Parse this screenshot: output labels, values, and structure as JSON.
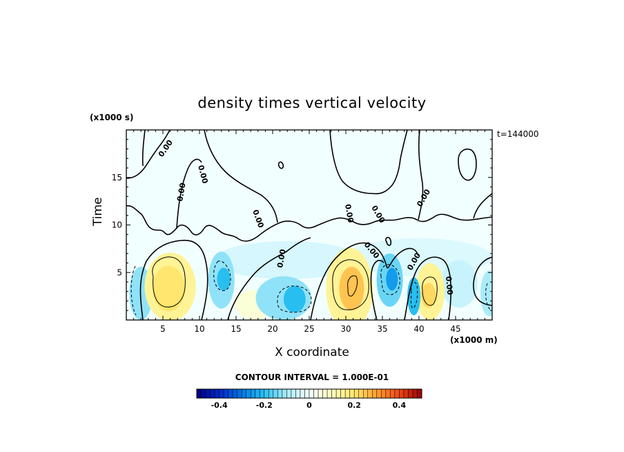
{
  "chart_data": {
    "type": "heatmap",
    "title": "density times vertical velocity",
    "xlabel": "X coordinate",
    "xunit": "(x1000 m)",
    "ylabel": "Time",
    "yunit": "(x1000 s)",
    "time_label": "t=144000",
    "xlim": [
      0,
      50
    ],
    "ylim": [
      0,
      20
    ],
    "xticks": [
      5,
      10,
      15,
      20,
      25,
      30,
      35,
      40,
      45
    ],
    "yticks": [
      5,
      10,
      15
    ],
    "contour_interval": "CONTOUR INTERVAL = 1.000E-01",
    "contour_labels": [
      "0.00"
    ],
    "colorbar": {
      "vmin": -0.5,
      "vmax": 0.5,
      "ticks": [
        "-0.4",
        "-0.2",
        "0",
        "0.2",
        "0.4"
      ],
      "tick_values": [
        -0.4,
        -0.2,
        0,
        0.2,
        0.4
      ]
    },
    "regions": [
      {
        "x": 6,
        "y": 3.5,
        "rx": 3.5,
        "ry": 3.6,
        "value": 0.15
      },
      {
        "x": 5.8,
        "y": 3.3,
        "rx": 2.2,
        "ry": 2.4,
        "value": 0.2
      },
      {
        "x": 2,
        "y": 2.8,
        "rx": 1.6,
        "ry": 2.8,
        "value": -0.12
      },
      {
        "x": 13,
        "y": 4.2,
        "rx": 1.8,
        "ry": 3.0,
        "value": -0.12
      },
      {
        "x": 13.3,
        "y": 4.3,
        "rx": 0.9,
        "ry": 1.2,
        "value": -0.2
      },
      {
        "x": 21.5,
        "y": 2.3,
        "rx": 3.8,
        "ry": 2.3,
        "value": -0.12
      },
      {
        "x": 23,
        "y": 2.2,
        "rx": 1.5,
        "ry": 1.4,
        "value": -0.2
      },
      {
        "x": 17.5,
        "y": 1.6,
        "rx": 2.6,
        "ry": 1.6,
        "value": 0.06
      },
      {
        "x": 30.5,
        "y": 3.3,
        "rx": 3.2,
        "ry": 4.3,
        "value": 0.15
      },
      {
        "x": 30.8,
        "y": 3.3,
        "rx": 1.7,
        "ry": 2.3,
        "value": 0.25
      },
      {
        "x": 36,
        "y": 4.2,
        "rx": 1.8,
        "ry": 2.8,
        "value": -0.15
      },
      {
        "x": 36.3,
        "y": 4.3,
        "rx": 0.8,
        "ry": 1.2,
        "value": -0.25
      },
      {
        "x": 39.3,
        "y": 2.5,
        "rx": 0.9,
        "ry": 2.0,
        "value": -0.2
      },
      {
        "x": 41.5,
        "y": 3.0,
        "rx": 2.0,
        "ry": 3.0,
        "value": 0.15
      },
      {
        "x": 41.3,
        "y": 2.6,
        "rx": 1.0,
        "ry": 1.3,
        "value": 0.22
      },
      {
        "x": 45.5,
        "y": 3.8,
        "rx": 2.5,
        "ry": 2.5,
        "value": -0.06
      },
      {
        "x": 49.6,
        "y": 2.8,
        "rx": 1.2,
        "ry": 2.4,
        "value": -0.1
      },
      {
        "x": 22,
        "y": 6.3,
        "rx": 10,
        "ry": 2.0,
        "value": -0.04
      },
      {
        "x": 40,
        "y": 6.6,
        "rx": 10,
        "ry": 2.0,
        "value": -0.03
      }
    ]
  }
}
